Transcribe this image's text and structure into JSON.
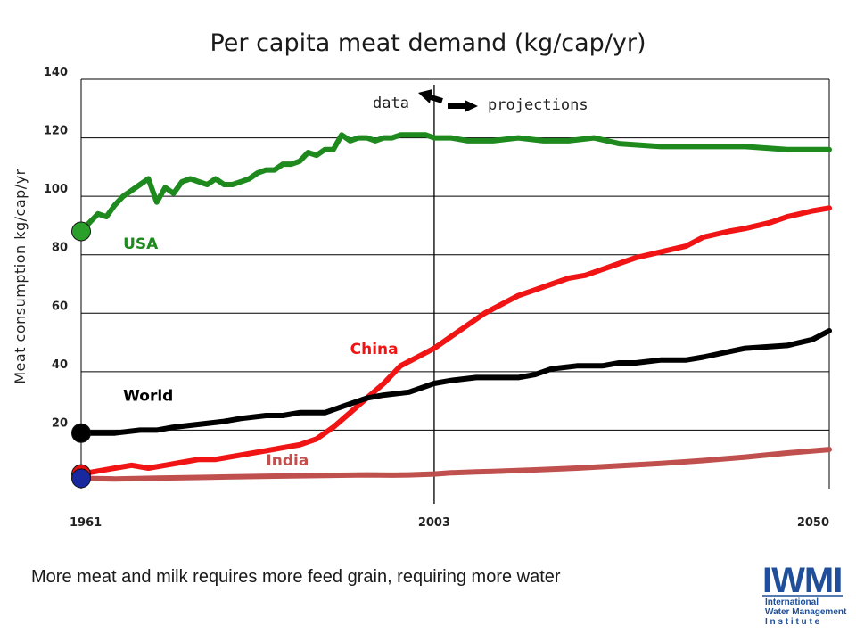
{
  "slide": {
    "caption": "More meat and milk requires more feed grain, requiring more water",
    "logo": {
      "acronym": "IWMI",
      "lines": [
        "International",
        "Water Management",
        "I n s t i t u t e"
      ]
    }
  },
  "chart_data": {
    "type": "line",
    "title": "Per capita meat demand (kg/cap/yr)",
    "ylabel": "Meat consumption kg/cap/yr",
    "xlabel": "",
    "xlim": [
      1961,
      2050
    ],
    "ylim": [
      0,
      140
    ],
    "yticks": [
      20,
      40,
      60,
      80,
      100,
      120,
      140
    ],
    "xticks": [
      1961,
      2003,
      2050
    ],
    "grid": "horizontal",
    "annotations": {
      "data_label": "data",
      "projections_label": "projections",
      "divider_year": 2003
    },
    "series": [
      {
        "name": "USA",
        "color": "#1e8a1e",
        "label_x": 1966,
        "label_y": 82,
        "x": [
          1961,
          1962,
          1963,
          1964,
          1965,
          1966,
          1967,
          1968,
          1969,
          1970,
          1971,
          1972,
          1973,
          1974,
          1975,
          1976,
          1977,
          1978,
          1979,
          1980,
          1981,
          1982,
          1983,
          1984,
          1985,
          1986,
          1987,
          1988,
          1989,
          1990,
          1991,
          1992,
          1993,
          1994,
          1995,
          1996,
          1997,
          1998,
          1999,
          2000,
          2001,
          2002,
          2003,
          2005,
          2007,
          2010,
          2013,
          2016,
          2019,
          2022,
          2025,
          2030,
          2035,
          2040,
          2045,
          2050
        ],
        "y": [
          88,
          91,
          94,
          93,
          97,
          100,
          102,
          104,
          106,
          98,
          103,
          101,
          105,
          106,
          105,
          104,
          106,
          104,
          104,
          105,
          106,
          108,
          109,
          109,
          111,
          111,
          112,
          115,
          114,
          116,
          116,
          121,
          119,
          120,
          120,
          119,
          120,
          120,
          121,
          121,
          121,
          121,
          120,
          120,
          119,
          119,
          120,
          119,
          119,
          120,
          118,
          117,
          117,
          117,
          116,
          116
        ]
      },
      {
        "name": "World",
        "color": "#000000",
        "label_x": 1966,
        "label_y": 30,
        "x": [
          1961,
          1965,
          1968,
          1970,
          1972,
          1975,
          1978,
          1980,
          1983,
          1985,
          1987,
          1990,
          1992,
          1995,
          1997,
          2000,
          2003,
          2005,
          2008,
          2010,
          2013,
          2015,
          2017,
          2020,
          2023,
          2025,
          2027,
          2030,
          2033,
          2035,
          2040,
          2045,
          2048,
          2050
        ],
        "y": [
          19,
          19,
          20,
          20,
          21,
          22,
          23,
          24,
          25,
          25,
          26,
          26,
          28,
          31,
          32,
          33,
          36,
          37,
          38,
          38,
          38,
          39,
          41,
          42,
          42,
          43,
          43,
          44,
          44,
          45,
          48,
          49,
          51,
          54
        ]
      },
      {
        "name": "China",
        "color": "#f01414",
        "label_x": 1993,
        "label_y": 46,
        "x": [
          1961,
          1963,
          1965,
          1967,
          1969,
          1971,
          1973,
          1975,
          1977,
          1979,
          1981,
          1983,
          1985,
          1987,
          1989,
          1991,
          1993,
          1995,
          1997,
          1999,
          2001,
          2003,
          2005,
          2007,
          2009,
          2011,
          2013,
          2015,
          2017,
          2019,
          2021,
          2023,
          2025,
          2027,
          2030,
          2033,
          2035,
          2038,
          2040,
          2043,
          2045,
          2048,
          2050
        ],
        "y": [
          5,
          6,
          7,
          8,
          7,
          8,
          9,
          10,
          10,
          11,
          12,
          13,
          14,
          15,
          17,
          21,
          26,
          31,
          36,
          42,
          45,
          48,
          52,
          56,
          60,
          63,
          66,
          68,
          70,
          72,
          73,
          75,
          77,
          79,
          81,
          83,
          86,
          88,
          89,
          91,
          93,
          95,
          96
        ]
      },
      {
        "name": "India",
        "color": "#c0504d",
        "label_x": 1983,
        "label_y": 8,
        "x": [
          1961,
          1965,
          1970,
          1975,
          1980,
          1985,
          1990,
          1995,
          1998,
          2000,
          2003,
          2005,
          2008,
          2010,
          2015,
          2020,
          2025,
          2030,
          2035,
          2040,
          2045,
          2050
        ],
        "y": [
          3.5,
          3.3,
          3.6,
          3.8,
          4.1,
          4.3,
          4.5,
          4.7,
          4.6,
          4.7,
          5.0,
          5.4,
          5.7,
          5.9,
          6.4,
          7.0,
          7.8,
          8.6,
          9.6,
          10.8,
          12.2,
          13.4
        ]
      }
    ]
  }
}
